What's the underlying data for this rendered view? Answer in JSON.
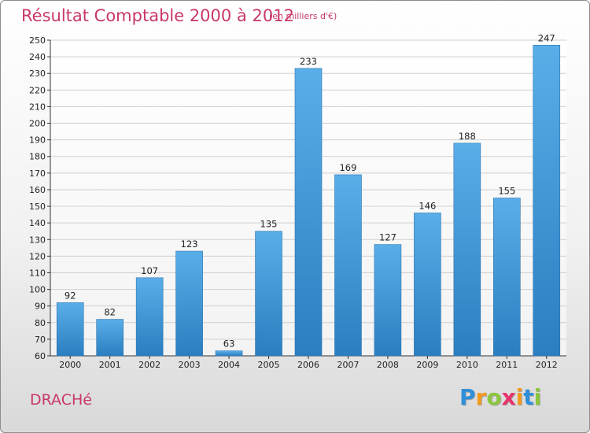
{
  "header": {
    "title": "Résultat Comptable 2000 à 2012",
    "subtitle": "(en milliers d'€)"
  },
  "footer": {
    "place": "DRACHé",
    "brand_letters": [
      {
        "char": "P",
        "color": "#2f8fd8"
      },
      {
        "char": "r",
        "color": "#f39a1f"
      },
      {
        "char": "o",
        "color": "#8cc63f"
      },
      {
        "char": "x",
        "color": "#e8336b"
      },
      {
        "char": "i",
        "color": "#f39a1f"
      },
      {
        "char": "t",
        "color": "#2f8fd8"
      },
      {
        "char": "i",
        "color": "#8cc63f"
      }
    ]
  },
  "colors": {
    "bar_light": "#5aaee8",
    "bar_dark": "#2b7ec0",
    "grid": "#cfcfcf",
    "title": "#c8386a"
  },
  "chart_data": {
    "type": "bar",
    "title": "Résultat Comptable 2000 à 2012",
    "subtitle": "(en milliers d'€)",
    "xlabel": "",
    "ylabel": "",
    "categories": [
      "2000",
      "2001",
      "2002",
      "2003",
      "2004",
      "2005",
      "2006",
      "2007",
      "2008",
      "2009",
      "2010",
      "2011",
      "2012"
    ],
    "values": [
      92,
      82,
      107,
      123,
      63,
      135,
      233,
      169,
      127,
      146,
      188,
      155,
      247
    ],
    "ylim": [
      60,
      250
    ],
    "ytick_step": 10,
    "grid": true
  }
}
